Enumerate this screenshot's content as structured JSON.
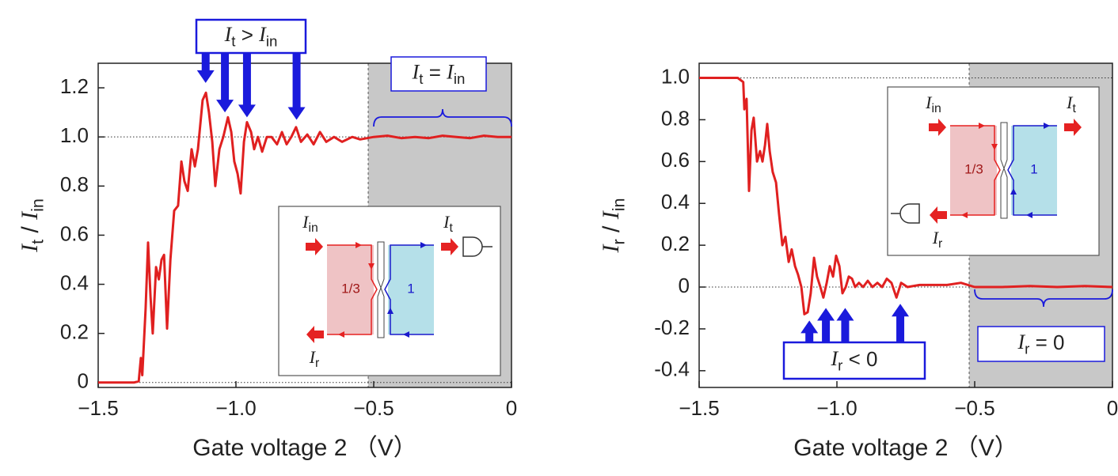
{
  "chart_data": [
    {
      "type": "line",
      "ylabel": [
        "I",
        "t",
        " / ",
        "I",
        "in"
      ],
      "xlabel": "Gate voltage 2 （V）",
      "xlim": [
        -1.5,
        0
      ],
      "ylim": [
        -0.02,
        1.3
      ],
      "xticks": [
        {
          "value": -1.5,
          "label": "−1.5"
        },
        {
          "value": -1,
          "label": "−1.0"
        },
        {
          "value": -0.5,
          "label": "−0.5"
        },
        0
      ],
      "yticks": [
        0,
        0.2,
        0.4,
        0.6,
        0.8,
        {
          "value": 1,
          "label": "1.0"
        },
        1.2
      ],
      "ref_lines": [
        0,
        1
      ],
      "shade_from": -0.52,
      "series": [
        {
          "color": "#e02020",
          "x": [
            -1.5,
            -1.4,
            -1.37,
            -1.353,
            -1.345,
            -1.34,
            -1.328,
            -1.319,
            -1.31,
            -1.302,
            -1.29,
            -1.28,
            -1.27,
            -1.261,
            -1.25,
            -1.238,
            -1.224,
            -1.21,
            -1.198,
            -1.187,
            -1.175,
            -1.161,
            -1.149,
            -1.138,
            -1.121,
            -1.109,
            -1.098,
            -1.086,
            -1.075,
            -1.06,
            -1.046,
            -1.029,
            -1.017,
            -1.006,
            -0.994,
            -0.983,
            -0.971,
            -0.96,
            -0.945,
            -0.934,
            -0.92,
            -0.905,
            -0.888,
            -0.871,
            -0.851,
            -0.833,
            -0.816,
            -0.799,
            -0.782,
            -0.764,
            -0.741,
            -0.718,
            -0.695,
            -0.672,
            -0.644,
            -0.615,
            -0.578,
            -0.549,
            -0.5,
            -0.45,
            -0.4,
            -0.35,
            -0.3,
            -0.25,
            -0.2,
            -0.15,
            -0.1,
            -0.05,
            0
          ],
          "values": [
            0,
            0,
            0,
            0.005,
            0.1,
            0.03,
            0.3,
            0.57,
            0.35,
            0.2,
            0.47,
            0.42,
            0.5,
            0.52,
            0.22,
            0.5,
            0.7,
            0.72,
            0.9,
            0.82,
            0.78,
            0.95,
            0.88,
            0.95,
            1.15,
            1.18,
            1.1,
            0.98,
            0.8,
            0.95,
            1.0,
            1.08,
            1.02,
            0.9,
            0.85,
            0.77,
            0.98,
            1.06,
            1.02,
            0.95,
            1.0,
            0.94,
            1.0,
            1.0,
            0.97,
            1.02,
            0.97,
            1.0,
            1.04,
            0.98,
            1.01,
            0.97,
            1.02,
            0.98,
            1.0,
            0.98,
            1.0,
            0.99,
            1.0,
            1.005,
            0.995,
            1.0,
            0.995,
            1.005,
            1.0,
            0.995,
            1.005,
            1.0,
            1.0
          ]
        }
      ],
      "annotations": [
        {
          "label": [
            "I",
            "t",
            " > ",
            "I",
            "in"
          ],
          "arrows": [
            {
              "x": -1.11,
              "y": 1.22
            },
            {
              "x": -1.04,
              "y": 1.1
            },
            {
              "x": -0.96,
              "y": 1.08
            },
            {
              "x": -0.78,
              "y": 1.07
            }
          ]
        },
        {
          "label": [
            "I",
            "t",
            " = ",
            "I",
            "in"
          ],
          "span": [
            -0.5,
            0
          ]
        }
      ],
      "inset": {
        "in": [
          "I",
          "in"
        ],
        "t": [
          "I",
          "t"
        ],
        "r": [
          "I",
          "r"
        ],
        "fillings": [
          "1/3",
          "1"
        ]
      }
    },
    {
      "type": "line",
      "ylabel": [
        "I",
        "r",
        " / ",
        "I",
        "in"
      ],
      "xlabel": "Gate voltage 2 （V）",
      "xlim": [
        -1.5,
        0
      ],
      "ylim": [
        -0.48,
        1.07
      ],
      "xticks": [
        {
          "value": -1.5,
          "label": "−1.5"
        },
        {
          "value": -1,
          "label": "−1.0"
        },
        {
          "value": -0.5,
          "label": "−0.5"
        },
        0
      ],
      "yticks": [
        -0.4,
        -0.2,
        0,
        0.2,
        0.4,
        0.6,
        0.8,
        {
          "value": 1,
          "label": "1.0"
        }
      ],
      "ref_lines": [
        0,
        1
      ],
      "shade_from": -0.52,
      "series": [
        {
          "color": "#e02020",
          "x": [
            -1.5,
            -1.4,
            -1.36,
            -1.34,
            -1.336,
            -1.328,
            -1.319,
            -1.31,
            -1.302,
            -1.29,
            -1.279,
            -1.27,
            -1.261,
            -1.253,
            -1.244,
            -1.233,
            -1.221,
            -1.21,
            -1.198,
            -1.187,
            -1.175,
            -1.164,
            -1.152,
            -1.141,
            -1.129,
            -1.118,
            -1.106,
            -1.095,
            -1.083,
            -1.072,
            -1.06,
            -1.049,
            -1.037,
            -1.026,
            -1.014,
            -1.003,
            -0.991,
            -0.98,
            -0.968,
            -0.957,
            -0.945,
            -0.934,
            -0.92,
            -0.905,
            -0.888,
            -0.871,
            -0.853,
            -0.836,
            -0.819,
            -0.802,
            -0.784,
            -0.767,
            -0.744,
            -0.7,
            -0.65,
            -0.6,
            -0.55,
            -0.5,
            -0.4,
            -0.3,
            -0.2,
            -0.1,
            0
          ],
          "values": [
            1,
            1,
            1,
            0.98,
            0.85,
            0.9,
            0.46,
            0.75,
            0.81,
            0.6,
            0.65,
            0.6,
            0.68,
            0.78,
            0.65,
            0.55,
            0.5,
            0.35,
            0.2,
            0.24,
            0.12,
            0.18,
            0.1,
            0.06,
            0,
            -0.13,
            -0.12,
            -0.03,
            0.14,
            0.05,
            0,
            -0.05,
            0.02,
            0.1,
            0.05,
            0.15,
            0.1,
            -0.03,
            0,
            0.05,
            0.04,
            0,
            0.02,
            0,
            0.03,
            0,
            0.02,
            0,
            0.04,
            0.02,
            -0.05,
            0.02,
            0,
            0.01,
            0.01,
            0.01,
            0.02,
            0,
            0,
            0.005,
            0,
            0.005,
            0
          ]
        }
      ],
      "annotations": [
        {
          "label": [
            "I",
            "r",
            " < 0"
          ],
          "arrows": [
            {
              "x": -1.1,
              "y": -0.16
            },
            {
              "x": -1.04,
              "y": -0.1
            },
            {
              "x": -0.97,
              "y": -0.1
            },
            {
              "x": -0.77,
              "y": -0.08
            }
          ]
        },
        {
          "label": [
            "I",
            "r",
            " = 0"
          ],
          "span": [
            -0.5,
            0
          ]
        }
      ],
      "inset": {
        "in": [
          "I",
          "in"
        ],
        "t": [
          "I",
          "t"
        ],
        "r": [
          "I",
          "r"
        ],
        "fillings": [
          "1/3",
          "1"
        ]
      }
    }
  ]
}
